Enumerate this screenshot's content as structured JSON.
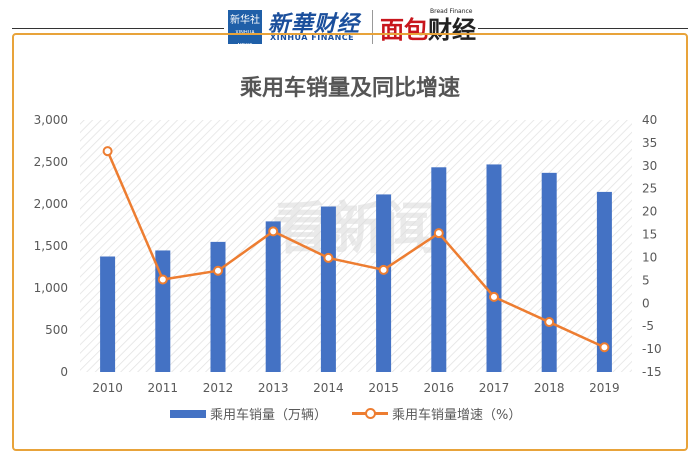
{
  "header": {
    "logo_box_text": "新华社",
    "logo_box_sub": "XINHUA NEWS",
    "brand_cn": "新華财经",
    "brand_en": "XINHUA FINANCE",
    "brand2_part1": "面包",
    "brand2_part2": "财经",
    "brand2_en": "Bread Finance"
  },
  "chart_data": {
    "type": "bar",
    "title": "乘用车销量及同比增速",
    "categories": [
      "2010",
      "2011",
      "2012",
      "2013",
      "2014",
      "2015",
      "2016",
      "2017",
      "2018",
      "2019"
    ],
    "series": [
      {
        "name": "乘用车销量（万辆）",
        "type": "bar",
        "axis": "left",
        "color": "#4472c4",
        "values": [
          1375,
          1447,
          1549,
          1793,
          1970,
          2114,
          2437,
          2471,
          2371,
          2144
        ]
      },
      {
        "name": "乘用车销量增速（%）",
        "type": "line",
        "axis": "right",
        "color": "#ed7d31",
        "values": [
          33.2,
          5.2,
          7.1,
          15.7,
          9.9,
          7.3,
          15.3,
          1.4,
          -4.1,
          -9.6
        ]
      }
    ],
    "y_left": {
      "min": 0,
      "max": 3000,
      "ticks": [
        "0",
        "500",
        "1,000",
        "1,500",
        "2,000",
        "2,500",
        "3,000"
      ]
    },
    "y_right": {
      "min": -15,
      "max": 40,
      "ticks": [
        "-15",
        "-10",
        "-5",
        "0",
        "5",
        "10",
        "15",
        "20",
        "25",
        "30",
        "35",
        "40"
      ]
    },
    "legend_position": "bottom",
    "grid": false,
    "watermark": "看新闻"
  }
}
